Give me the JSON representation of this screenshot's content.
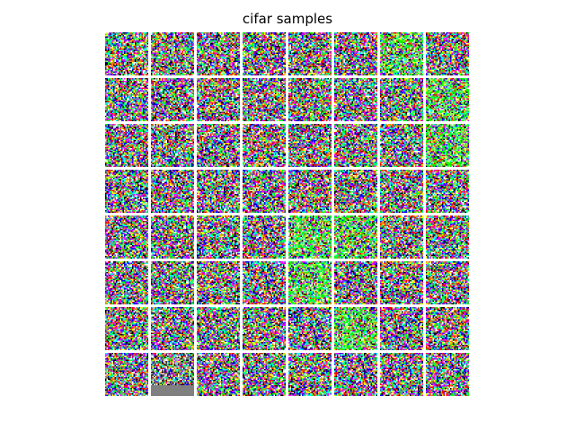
{
  "figure": {
    "title": "cifar samples"
  },
  "grid": {
    "rows": 8,
    "cols": 8,
    "tile_pixels": 32,
    "palette": [
      "#ff0000",
      "#00ff00",
      "#0000ff",
      "#ffff00",
      "#ff00ff",
      "#00ffff",
      "#000000",
      "#ffffff",
      "#808080",
      "#00ff80",
      "#ff8000",
      "#8000ff"
    ],
    "greenish_tiles": [
      6,
      15,
      23,
      36,
      37,
      44,
      53
    ],
    "greyish_tile": 57
  }
}
